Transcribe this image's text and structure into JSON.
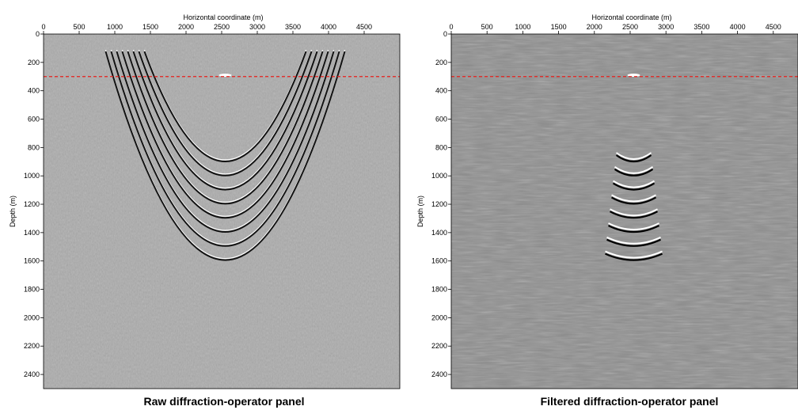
{
  "chart_data": [
    {
      "type": "image",
      "title": "Raw diffraction-operator panel",
      "x_label": "Horizontal coordinate (m)",
      "y_label": "Depth (m)",
      "xlim": [
        0,
        5000
      ],
      "xticks": [
        0,
        500,
        1000,
        1500,
        2000,
        2500,
        3000,
        3500,
        4000,
        4500
      ],
      "ylim": [
        0,
        2500
      ],
      "yticks": [
        0,
        200,
        400,
        600,
        800,
        1000,
        1200,
        1400,
        1600,
        1800,
        2000,
        2200,
        2400
      ],
      "reference_depth": 300,
      "reference_color": "#e8201c",
      "background": "#ababab"
    },
    {
      "type": "image",
      "title": "Filtered diffraction-operator panel",
      "x_label": "Horizontal coordinate (m)",
      "y_label": "Depth (m)",
      "xlim": [
        0,
        5000
      ],
      "xticks": [
        0,
        500,
        1000,
        1500,
        2000,
        2500,
        3000,
        3500,
        4000,
        4500
      ],
      "ylim": [
        0,
        2500
      ],
      "yticks": [
        0,
        200,
        400,
        600,
        800,
        1000,
        1200,
        1400,
        1600,
        1800,
        2000,
        2200,
        2400
      ],
      "reference_depth": 300,
      "reference_color": "#e8201c",
      "background": "#8e8e8e"
    }
  ]
}
